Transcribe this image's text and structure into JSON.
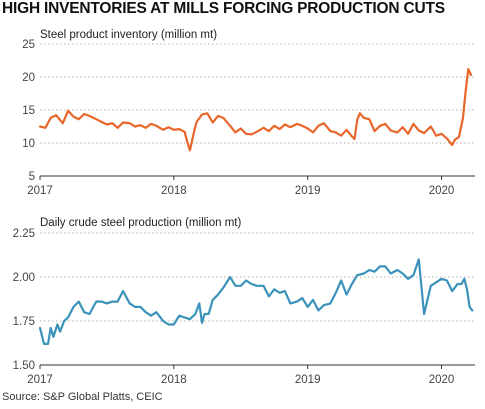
{
  "title": "HIGH INVENTORIES AT MILLS FORCING PRODUCTION CUTS",
  "source": "Source: S&P Global Platts, CEIC",
  "colors": {
    "inventory": "#E8662A",
    "production": "#3B92BA",
    "gridline": "#999999",
    "axis": "#333333"
  },
  "chart_data": [
    {
      "type": "line",
      "title": "Steel product inventory (million mt)",
      "ylim": [
        5,
        25
      ],
      "yticks": [
        "5",
        "10",
        "15",
        "20",
        "25"
      ],
      "ytick_values": [
        5,
        10,
        15,
        20,
        25
      ],
      "xlim": [
        2017.0,
        2020.25
      ],
      "xticks": [
        "2017",
        "2018",
        "2019",
        "2020"
      ],
      "xtick_values": [
        2017,
        2018,
        2019,
        2020
      ],
      "grid": "horizontal dotted",
      "series": [
        {
          "values": [
            [
              2017.0,
              12.5
            ],
            [
              2017.04,
              12.3
            ],
            [
              2017.08,
              13.8
            ],
            [
              2017.12,
              14.2
            ],
            [
              2017.17,
              13.0
            ],
            [
              2017.21,
              14.9
            ],
            [
              2017.25,
              14.0
            ],
            [
              2017.29,
              13.6
            ],
            [
              2017.33,
              14.4
            ],
            [
              2017.37,
              14.1
            ],
            [
              2017.42,
              13.6
            ],
            [
              2017.46,
              13.2
            ],
            [
              2017.5,
              12.8
            ],
            [
              2017.54,
              13.0
            ],
            [
              2017.58,
              12.3
            ],
            [
              2017.62,
              13.1
            ],
            [
              2017.67,
              13.0
            ],
            [
              2017.71,
              12.5
            ],
            [
              2017.75,
              12.7
            ],
            [
              2017.79,
              12.3
            ],
            [
              2017.83,
              12.9
            ],
            [
              2017.87,
              12.6
            ],
            [
              2017.92,
              12.0
            ],
            [
              2017.96,
              12.4
            ],
            [
              2018.0,
              12.0
            ],
            [
              2018.04,
              12.1
            ],
            [
              2018.08,
              11.7
            ],
            [
              2018.1,
              10.2
            ],
            [
              2018.12,
              8.9
            ],
            [
              2018.15,
              11.6
            ],
            [
              2018.17,
              13.2
            ],
            [
              2018.21,
              14.3
            ],
            [
              2018.25,
              14.5
            ],
            [
              2018.29,
              13.1
            ],
            [
              2018.33,
              14.1
            ],
            [
              2018.37,
              13.8
            ],
            [
              2018.42,
              12.6
            ],
            [
              2018.46,
              11.6
            ],
            [
              2018.5,
              12.2
            ],
            [
              2018.54,
              11.4
            ],
            [
              2018.58,
              11.3
            ],
            [
              2018.62,
              11.7
            ],
            [
              2018.67,
              12.3
            ],
            [
              2018.71,
              11.8
            ],
            [
              2018.75,
              12.6
            ],
            [
              2018.79,
              12.1
            ],
            [
              2018.83,
              12.8
            ],
            [
              2018.87,
              12.4
            ],
            [
              2018.92,
              12.9
            ],
            [
              2018.96,
              12.6
            ],
            [
              2019.0,
              12.2
            ],
            [
              2019.04,
              11.6
            ],
            [
              2019.08,
              12.6
            ],
            [
              2019.12,
              13.0
            ],
            [
              2019.17,
              11.8
            ],
            [
              2019.21,
              11.6
            ],
            [
              2019.25,
              11.1
            ],
            [
              2019.29,
              12.0
            ],
            [
              2019.33,
              11.0
            ],
            [
              2019.35,
              10.6
            ],
            [
              2019.37,
              13.5
            ],
            [
              2019.39,
              14.5
            ],
            [
              2019.42,
              13.8
            ],
            [
              2019.46,
              13.6
            ],
            [
              2019.5,
              11.8
            ],
            [
              2019.54,
              12.6
            ],
            [
              2019.58,
              12.9
            ],
            [
              2019.62,
              11.9
            ],
            [
              2019.67,
              11.6
            ],
            [
              2019.71,
              12.4
            ],
            [
              2019.75,
              11.4
            ],
            [
              2019.79,
              12.9
            ],
            [
              2019.83,
              11.9
            ],
            [
              2019.87,
              11.5
            ],
            [
              2019.92,
              12.5
            ],
            [
              2019.96,
              11.1
            ],
            [
              2020.0,
              11.4
            ],
            [
              2020.04,
              10.7
            ],
            [
              2020.08,
              9.7
            ],
            [
              2020.1,
              10.5
            ],
            [
              2020.13,
              10.9
            ],
            [
              2020.16,
              13.8
            ],
            [
              2020.18,
              17.8
            ],
            [
              2020.2,
              21.2
            ],
            [
              2020.22,
              20.3
            ]
          ]
        }
      ]
    },
    {
      "type": "line",
      "title": "Daily crude steel production (million mt)",
      "ylim": [
        1.5,
        2.25
      ],
      "yticks": [
        "1.50",
        "1.75",
        "2.00",
        "2.25"
      ],
      "ytick_values": [
        1.5,
        1.75,
        2.0,
        2.25
      ],
      "xlim": [
        2017.0,
        2020.25
      ],
      "xticks": [
        "2017",
        "2018",
        "2019",
        "2020"
      ],
      "xtick_values": [
        2017,
        2018,
        2019,
        2020
      ],
      "grid": "horizontal dotted",
      "series": [
        {
          "values": [
            [
              2017.0,
              1.71
            ],
            [
              2017.03,
              1.62
            ],
            [
              2017.06,
              1.62
            ],
            [
              2017.08,
              1.71
            ],
            [
              2017.1,
              1.66
            ],
            [
              2017.13,
              1.73
            ],
            [
              2017.15,
              1.69
            ],
            [
              2017.18,
              1.75
            ],
            [
              2017.21,
              1.77
            ],
            [
              2017.25,
              1.83
            ],
            [
              2017.29,
              1.86
            ],
            [
              2017.33,
              1.8
            ],
            [
              2017.37,
              1.79
            ],
            [
              2017.42,
              1.86
            ],
            [
              2017.46,
              1.86
            ],
            [
              2017.5,
              1.85
            ],
            [
              2017.54,
              1.86
            ],
            [
              2017.58,
              1.86
            ],
            [
              2017.62,
              1.92
            ],
            [
              2017.67,
              1.85
            ],
            [
              2017.71,
              1.83
            ],
            [
              2017.75,
              1.83
            ],
            [
              2017.79,
              1.8
            ],
            [
              2017.83,
              1.78
            ],
            [
              2017.87,
              1.8
            ],
            [
              2017.92,
              1.75
            ],
            [
              2017.96,
              1.73
            ],
            [
              2018.0,
              1.73
            ],
            [
              2018.04,
              1.78
            ],
            [
              2018.08,
              1.77
            ],
            [
              2018.12,
              1.76
            ],
            [
              2018.16,
              1.79
            ],
            [
              2018.19,
              1.85
            ],
            [
              2018.21,
              1.74
            ],
            [
              2018.23,
              1.79
            ],
            [
              2018.26,
              1.79
            ],
            [
              2018.29,
              1.87
            ],
            [
              2018.33,
              1.9
            ],
            [
              2018.37,
              1.94
            ],
            [
              2018.42,
              2.0
            ],
            [
              2018.46,
              1.95
            ],
            [
              2018.5,
              1.95
            ],
            [
              2018.54,
              1.98
            ],
            [
              2018.58,
              1.96
            ],
            [
              2018.62,
              1.95
            ],
            [
              2018.67,
              1.95
            ],
            [
              2018.71,
              1.89
            ],
            [
              2018.75,
              1.93
            ],
            [
              2018.79,
              1.91
            ],
            [
              2018.83,
              1.92
            ],
            [
              2018.87,
              1.85
            ],
            [
              2018.92,
              1.86
            ],
            [
              2018.96,
              1.88
            ],
            [
              2019.0,
              1.83
            ],
            [
              2019.04,
              1.87
            ],
            [
              2019.08,
              1.81
            ],
            [
              2019.12,
              1.84
            ],
            [
              2019.17,
              1.85
            ],
            [
              2019.21,
              1.91
            ],
            [
              2019.25,
              1.98
            ],
            [
              2019.29,
              1.9
            ],
            [
              2019.33,
              1.96
            ],
            [
              2019.37,
              2.01
            ],
            [
              2019.42,
              2.02
            ],
            [
              2019.46,
              2.04
            ],
            [
              2019.5,
              2.03
            ],
            [
              2019.54,
              2.06
            ],
            [
              2019.58,
              2.06
            ],
            [
              2019.62,
              2.02
            ],
            [
              2019.67,
              2.04
            ],
            [
              2019.71,
              2.02
            ],
            [
              2019.75,
              1.99
            ],
            [
              2019.79,
              2.01
            ],
            [
              2019.83,
              2.1
            ],
            [
              2019.87,
              1.79
            ],
            [
              2019.92,
              1.95
            ],
            [
              2019.96,
              1.97
            ],
            [
              2020.0,
              1.99
            ],
            [
              2020.04,
              1.98
            ],
            [
              2020.08,
              1.92
            ],
            [
              2020.12,
              1.96
            ],
            [
              2020.15,
              1.96
            ],
            [
              2020.17,
              1.99
            ],
            [
              2020.19,
              1.93
            ],
            [
              2020.21,
              1.83
            ],
            [
              2020.23,
              1.81
            ]
          ]
        }
      ]
    }
  ]
}
